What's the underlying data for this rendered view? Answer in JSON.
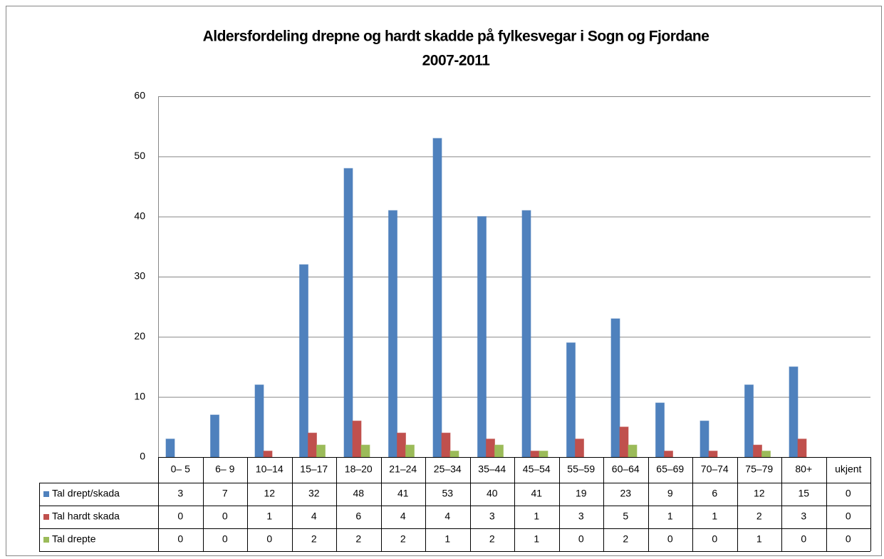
{
  "chart_data": {
    "type": "bar",
    "title": [
      "Aldersfordeling drepne og hardt skadde på fylkesvegar i Sogn og Fjordane",
      "2007-2011"
    ],
    "categories": [
      "0– 5",
      "6– 9",
      "10–14",
      "15–17",
      "18–20",
      "21–24",
      "25–34",
      "35–44",
      "45–54",
      "55–59",
      "60–64",
      "65–69",
      "70–74",
      "75–79",
      "80+",
      "ukjent"
    ],
    "series": [
      {
        "name": "Tal drept/skada",
        "color": "#4f81bd",
        "values": [
          3,
          7,
          12,
          32,
          48,
          41,
          53,
          40,
          41,
          19,
          23,
          9,
          6,
          12,
          15,
          0
        ]
      },
      {
        "name": "Tal hardt skada",
        "color": "#c0504d",
        "values": [
          0,
          0,
          1,
          4,
          6,
          4,
          4,
          3,
          1,
          3,
          5,
          1,
          1,
          2,
          3,
          0
        ]
      },
      {
        "name": "Tal drepte",
        "color": "#9bbb59",
        "values": [
          0,
          0,
          0,
          2,
          2,
          2,
          1,
          2,
          1,
          0,
          2,
          0,
          0,
          1,
          0,
          0
        ]
      }
    ],
    "ylim": [
      0,
      60
    ],
    "yticks": [
      0,
      10,
      20,
      30,
      40,
      50,
      60
    ],
    "grid": true
  }
}
